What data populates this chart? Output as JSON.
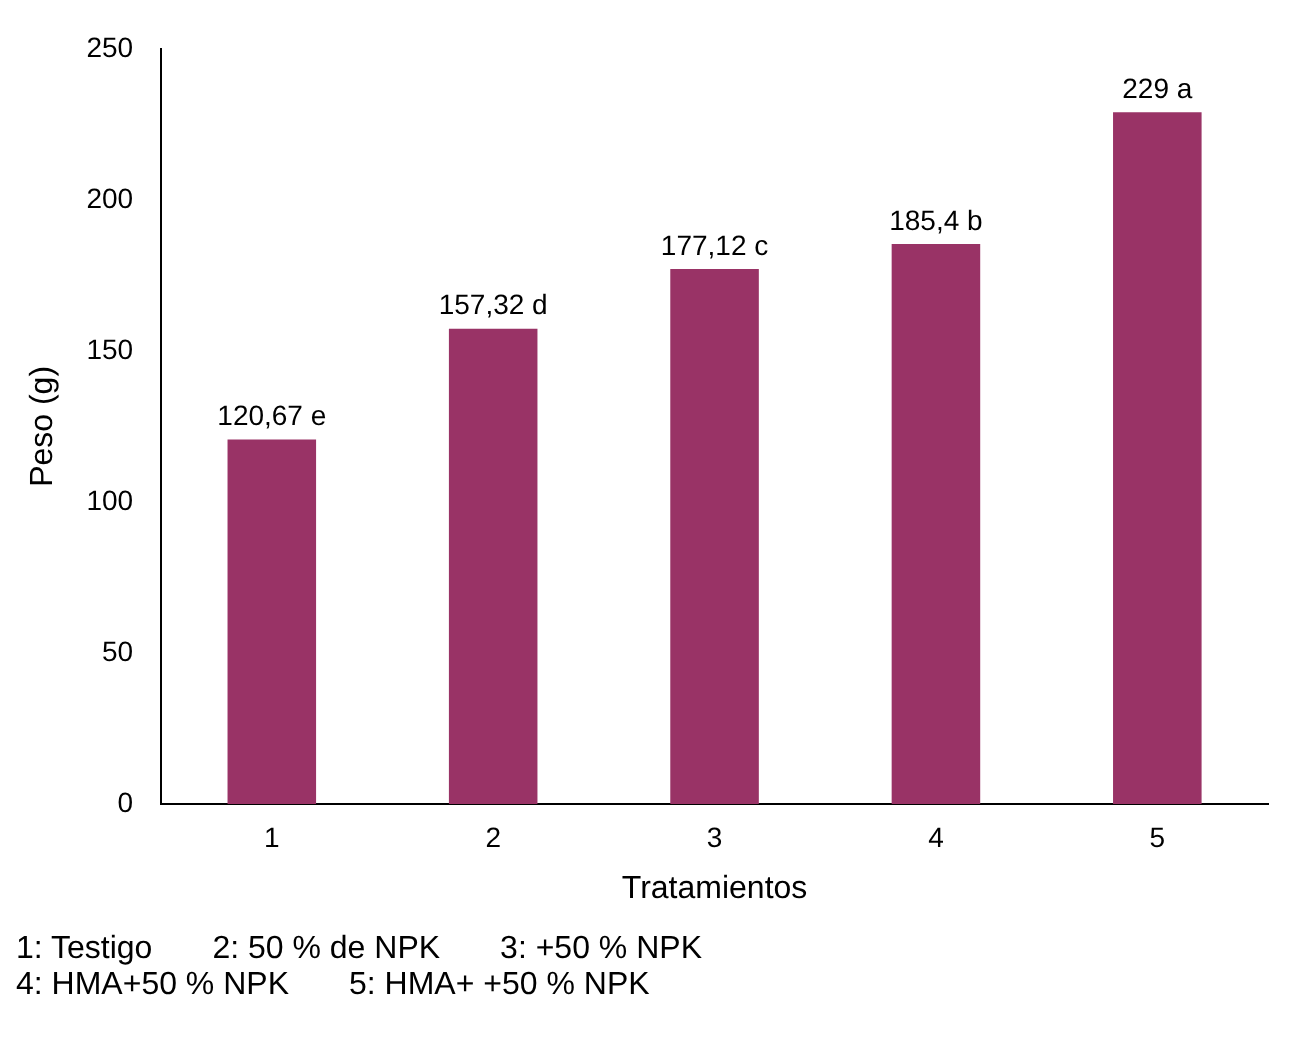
{
  "chart_data": {
    "type": "bar",
    "xlabel": "Tratamientos",
    "ylabel": "Peso (g)",
    "categories": [
      "1",
      "2",
      "3",
      "4",
      "5"
    ],
    "values": [
      120.67,
      157.32,
      177.12,
      185.4,
      229
    ],
    "value_labels": [
      "120,67 e",
      "157,32 d",
      "177,12 c",
      "185,4 b",
      "229 a"
    ],
    "color": "#993366",
    "ylim": [
      0,
      250
    ],
    "yticks": [
      0,
      50,
      100,
      150,
      200,
      250
    ],
    "grid": false,
    "legend": false,
    "annotations": [
      "1: Testigo",
      "2: 50 % de NPK",
      "3: +50 % NPK",
      "4: HMA+50 % NPK",
      "5: HMA+ +50 % NPK"
    ]
  }
}
